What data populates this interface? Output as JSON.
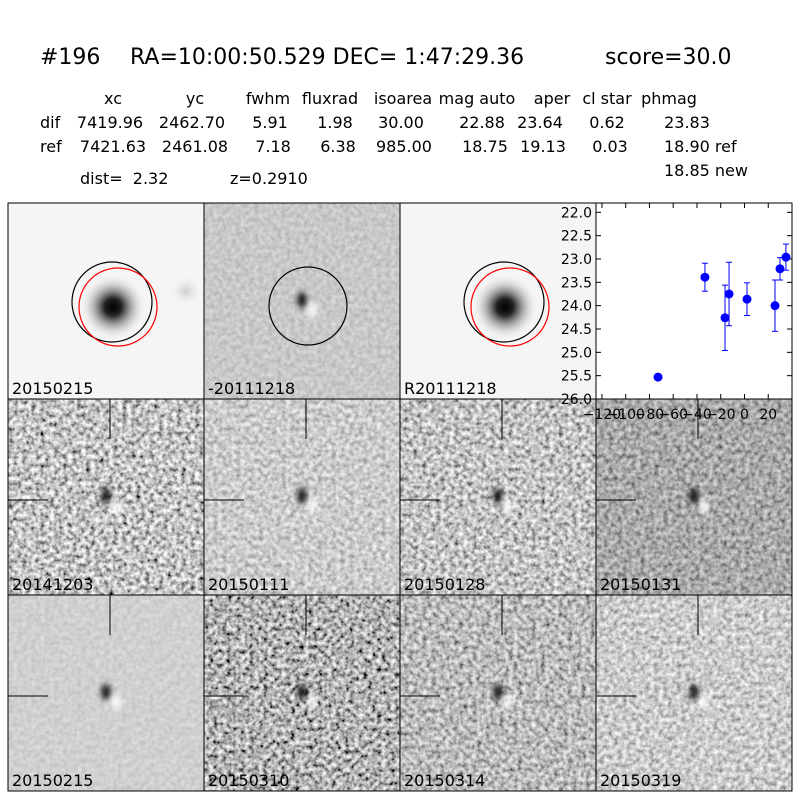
{
  "header": {
    "id": "#196",
    "coords": "RA=10:00:50.529 DEC= 1:47:29.36",
    "score": "score=30.0"
  },
  "table": {
    "columns": [
      "xc",
      "yc",
      "fwhm",
      "fluxrad",
      "isoarea",
      "mag auto",
      "aper",
      "cl star",
      "phmag"
    ],
    "rows": [
      {
        "label": "dif",
        "values": [
          "7419.96",
          "2462.70",
          "5.91",
          "1.98",
          "30.00",
          "22.88",
          "23.64",
          "0.62",
          "23.83"
        ]
      },
      {
        "label": "ref",
        "values": [
          "7421.63",
          "2461.08",
          "7.18",
          "6.38",
          "985.00",
          "18.75",
          "19.13",
          "0.03",
          "18.90 ref"
        ]
      }
    ],
    "extra": "18.85 new"
  },
  "info": {
    "dist": "dist=  2.32",
    "z": "z=0.2910"
  },
  "panels": [
    {
      "label": "20150215"
    },
    {
      "label": "-20111218"
    },
    {
      "label": "R20111218"
    },
    {
      "label": "20141203"
    },
    {
      "label": "20150111"
    },
    {
      "label": "20150128"
    },
    {
      "label": "20150131"
    },
    {
      "label": "20150215",
      "label_color": "#ff0000"
    },
    {
      "label": "20150310"
    },
    {
      "label": "20150314"
    },
    {
      "label": "20150319"
    }
  ],
  "chart_data": {
    "type": "errorbar",
    "color": "#0000ff",
    "x": [
      -72.8,
      -33.3,
      -16.4,
      -13,
      2.1,
      25.7,
      29.9,
      34.9
    ],
    "values": [
      25.53,
      23.39,
      24.26,
      23.75,
      23.86,
      24.0,
      23.21,
      22.96
    ],
    "errors": [
      0.05,
      0.3,
      0.7,
      0.68,
      0.35,
      0.55,
      0.24,
      0.28
    ],
    "xlim": [
      -125,
      40
    ],
    "ylim": [
      26.0,
      21.8
    ],
    "xticks": [
      {
        "value": -120,
        "label": "−120"
      },
      {
        "value": -100,
        "label": "−100"
      },
      {
        "value": -80,
        "label": "−80"
      },
      {
        "value": -60,
        "label": "−60"
      },
      {
        "value": -40,
        "label": "−40"
      },
      {
        "value": -20,
        "label": "−20"
      },
      0,
      20
    ],
    "yticks": [
      {
        "value": 22,
        "label": "22.0"
      },
      22.5,
      {
        "value": 23,
        "label": "23.0"
      },
      23.5,
      {
        "value": 24,
        "label": "24.0"
      },
      24.5,
      {
        "value": 25,
        "label": "25.0"
      },
      25.5,
      {
        "value": 26,
        "label": "26.0"
      }
    ]
  }
}
